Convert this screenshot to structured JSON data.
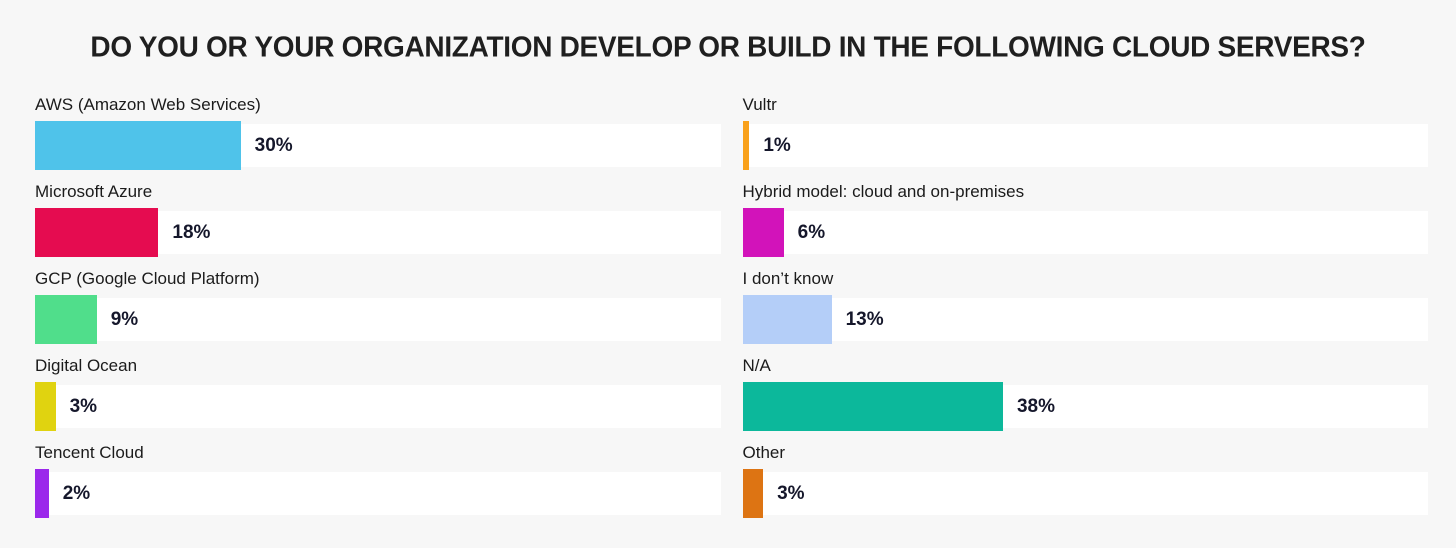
{
  "title": "DO YOU OR YOUR ORGANIZATION DEVELOP OR BUILD IN THE FOLLOWING CLOUD SERVERS?",
  "colors": {
    "background": "#F7F7F7",
    "track": "#FFFFFF",
    "title_text": "#1F1F1F",
    "label_text": "#1B1B1B",
    "value_text": "#15172B"
  },
  "chart_data": {
    "type": "bar",
    "orientation": "horizontal",
    "unit": "%",
    "axis_max": 100,
    "grid": false,
    "legend": false,
    "title": "DO YOU OR YOUR ORGANIZATION DEVELOP OR BUILD IN THE FOLLOWING CLOUD SERVERS?",
    "columns": [
      {
        "items": [
          {
            "id": "aws",
            "label": "AWS (Amazon Web Services)",
            "value": 30,
            "display": "30%",
            "color": "#4FC3EA"
          },
          {
            "id": "azure",
            "label": "Microsoft Azure",
            "value": 18,
            "display": "18%",
            "color": "#E50C50"
          },
          {
            "id": "gcp",
            "label": "GCP (Google Cloud Platform)",
            "value": 9,
            "display": "9%",
            "color": "#50DE8B"
          },
          {
            "id": "digital-ocean",
            "label": "Digital Ocean",
            "value": 3,
            "display": "3%",
            "color": "#E0D310"
          },
          {
            "id": "tencent-cloud",
            "label": "Tencent Cloud",
            "value": 2,
            "display": "2%",
            "color": "#9B28EB"
          }
        ]
      },
      {
        "items": [
          {
            "id": "vultr",
            "label": "Vultr",
            "value": 1,
            "display": "1%",
            "color": "#F9A11B"
          },
          {
            "id": "hybrid-model",
            "label": "Hybrid model: cloud and on-premises",
            "value": 6,
            "display": "6%",
            "color": "#D213BA"
          },
          {
            "id": "dont-know",
            "label": "I don’t know",
            "value": 13,
            "display": "13%",
            "color": "#B4CEF8"
          },
          {
            "id": "na",
            "label": "N/A",
            "value": 38,
            "display": "38%",
            "color": "#0CB89B"
          },
          {
            "id": "other",
            "label": "Other",
            "value": 3,
            "display": "3%",
            "color": "#DD7413"
          }
        ]
      }
    ]
  }
}
